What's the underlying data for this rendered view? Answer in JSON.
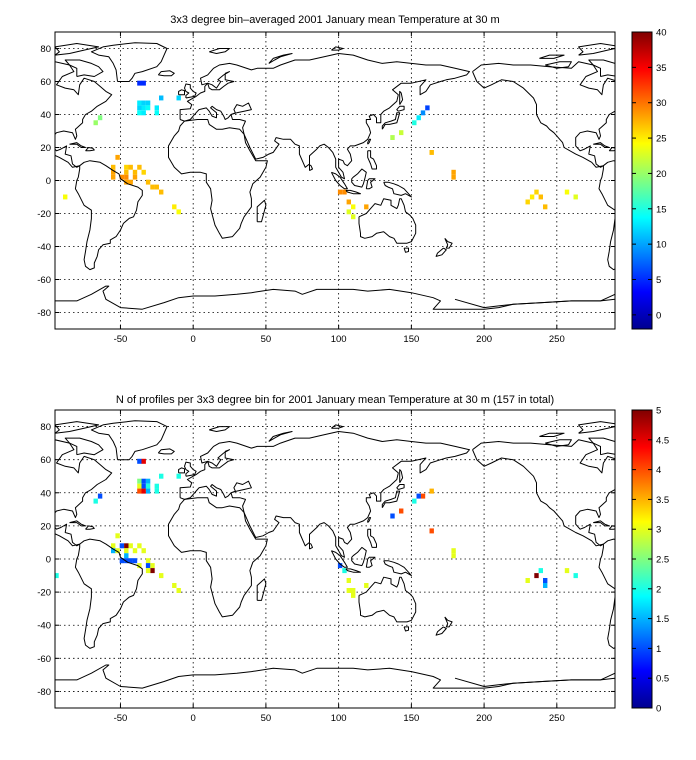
{
  "chart_data": [
    {
      "type": "heatmap",
      "title": "3x3 degree bin–averaged 2001 January mean Temperature at 30 m",
      "xlim": [
        -95,
        290
      ],
      "ylim": [
        -90,
        90
      ],
      "xticks": [
        -50,
        0,
        50,
        100,
        150,
        200,
        250
      ],
      "yticks": [
        -80,
        -60,
        -40,
        -20,
        0,
        20,
        40,
        60,
        80
      ],
      "grid": true,
      "colorbar": {
        "min": -2,
        "max": 40,
        "ticks": [
          0,
          5,
          10,
          15,
          20,
          25,
          30,
          35,
          40
        ],
        "colormap": "jet"
      },
      "points": [
        {
          "x": -37,
          "y": 59,
          "value": 5
        },
        {
          "x": -34,
          "y": 59,
          "value": 5
        },
        {
          "x": -22,
          "y": 50,
          "value": 11
        },
        {
          "x": -10,
          "y": 50,
          "value": 12
        },
        {
          "x": -37,
          "y": 47,
          "value": 13
        },
        {
          "x": -34,
          "y": 47,
          "value": 12
        },
        {
          "x": -31,
          "y": 47,
          "value": 12
        },
        {
          "x": -37,
          "y": 44,
          "value": 12
        },
        {
          "x": -34,
          "y": 44,
          "value": 13
        },
        {
          "x": -31,
          "y": 44,
          "value": 14
        },
        {
          "x": -25,
          "y": 44,
          "value": 13
        },
        {
          "x": -37,
          "y": 41,
          "value": 14
        },
        {
          "x": -34,
          "y": 41,
          "value": 13
        },
        {
          "x": -25,
          "y": 41,
          "value": 14
        },
        {
          "x": -64,
          "y": 38,
          "value": 19
        },
        {
          "x": -67,
          "y": 35,
          "value": 20
        },
        {
          "x": -52,
          "y": 14,
          "value": 28
        },
        {
          "x": -55,
          "y": 8,
          "value": 27
        },
        {
          "x": -46,
          "y": 8,
          "value": 26
        },
        {
          "x": -43,
          "y": 8,
          "value": 27
        },
        {
          "x": -37,
          "y": 8,
          "value": 27
        },
        {
          "x": -55,
          "y": 5,
          "value": 28
        },
        {
          "x": -46,
          "y": 5,
          "value": 27
        },
        {
          "x": -40,
          "y": 5,
          "value": 27
        },
        {
          "x": -34,
          "y": 5,
          "value": 26
        },
        {
          "x": -55,
          "y": 2,
          "value": 28
        },
        {
          "x": -49,
          "y": 2,
          "value": 29
        },
        {
          "x": -46,
          "y": 2,
          "value": 29
        },
        {
          "x": -40,
          "y": 2,
          "value": 28
        },
        {
          "x": -46,
          "y": -1,
          "value": 28
        },
        {
          "x": -43,
          "y": -1,
          "value": 28
        },
        {
          "x": -31,
          "y": -1,
          "value": 27
        },
        {
          "x": -28,
          "y": -4,
          "value": 27
        },
        {
          "x": -25,
          "y": -4,
          "value": 27
        },
        {
          "x": -22,
          "y": -7,
          "value": 27
        },
        {
          "x": -13,
          "y": -16,
          "value": 25
        },
        {
          "x": -10,
          "y": -19,
          "value": 24
        },
        {
          "x": -88,
          "y": -10,
          "value": 24
        },
        {
          "x": 101,
          "y": -7,
          "value": 29
        },
        {
          "x": 104,
          "y": -7,
          "value": 29
        },
        {
          "x": 107,
          "y": -13,
          "value": 28
        },
        {
          "x": 110,
          "y": -16,
          "value": 24
        },
        {
          "x": 107,
          "y": -19,
          "value": 23
        },
        {
          "x": 110,
          "y": -22,
          "value": 23
        },
        {
          "x": 119,
          "y": -16,
          "value": 28
        },
        {
          "x": 161,
          "y": 44,
          "value": 6
        },
        {
          "x": 158,
          "y": 41,
          "value": 9
        },
        {
          "x": 155,
          "y": 38,
          "value": 13
        },
        {
          "x": 152,
          "y": 35,
          "value": 15
        },
        {
          "x": 143,
          "y": 29,
          "value": 22
        },
        {
          "x": 137,
          "y": 26,
          "value": 21
        },
        {
          "x": 164,
          "y": 17,
          "value": 27
        },
        {
          "x": 179,
          "y": 5,
          "value": 28
        },
        {
          "x": 179,
          "y": 2,
          "value": 28
        },
        {
          "x": 230,
          "y": -13,
          "value": 26
        },
        {
          "x": 233,
          "y": -10,
          "value": 25
        },
        {
          "x": 236,
          "y": -7,
          "value": 26
        },
        {
          "x": 239,
          "y": -10,
          "value": 27
        },
        {
          "x": 242,
          "y": -16,
          "value": 27
        },
        {
          "x": 257,
          "y": -7,
          "value": 24
        },
        {
          "x": 263,
          "y": -10,
          "value": 23
        }
      ]
    },
    {
      "type": "heatmap",
      "title": "N of profiles per 3x3 degree bin for 2001 January mean Temperature at 30 m (157 in total)",
      "xlim": [
        -95,
        290
      ],
      "ylim": [
        -90,
        90
      ],
      "xticks": [
        -50,
        0,
        50,
        100,
        150,
        200,
        250
      ],
      "yticks": [
        -80,
        -60,
        -40,
        -20,
        0,
        20,
        40,
        60,
        80
      ],
      "grid": true,
      "colorbar": {
        "min": 0,
        "max": 5,
        "ticks": [
          0,
          0.5,
          1,
          1.5,
          2,
          2.5,
          3,
          3.5,
          4,
          4.5,
          5
        ],
        "colormap": "jet"
      },
      "points": [
        {
          "x": -37,
          "y": 59,
          "value": 1
        },
        {
          "x": -34,
          "y": 59,
          "value": 4.5
        },
        {
          "x": -22,
          "y": 50,
          "value": 2
        },
        {
          "x": -10,
          "y": 50,
          "value": 2
        },
        {
          "x": -37,
          "y": 47,
          "value": 2.5
        },
        {
          "x": -34,
          "y": 47,
          "value": 1
        },
        {
          "x": -31,
          "y": 47,
          "value": 1.5
        },
        {
          "x": -37,
          "y": 44,
          "value": 3
        },
        {
          "x": -34,
          "y": 44,
          "value": 1
        },
        {
          "x": -31,
          "y": 44,
          "value": 2
        },
        {
          "x": -25,
          "y": 44,
          "value": 2
        },
        {
          "x": -37,
          "y": 41,
          "value": 4
        },
        {
          "x": -34,
          "y": 41,
          "value": 4.5
        },
        {
          "x": -31,
          "y": 41,
          "value": 1.5
        },
        {
          "x": -25,
          "y": 41,
          "value": 2
        },
        {
          "x": -64,
          "y": 38,
          "value": 1
        },
        {
          "x": -67,
          "y": 35,
          "value": 2
        },
        {
          "x": -52,
          "y": 14,
          "value": 3
        },
        {
          "x": -55,
          "y": 8,
          "value": 3
        },
        {
          "x": -49,
          "y": 8,
          "value": 1
        },
        {
          "x": -46,
          "y": 8,
          "value": 5
        },
        {
          "x": -43,
          "y": 8,
          "value": 3
        },
        {
          "x": -37,
          "y": 8,
          "value": 3
        },
        {
          "x": -55,
          "y": 5,
          "value": 1.5
        },
        {
          "x": -52,
          "y": 5,
          "value": 3
        },
        {
          "x": -46,
          "y": 5,
          "value": 3
        },
        {
          "x": -40,
          "y": 5,
          "value": 3
        },
        {
          "x": -34,
          "y": 5,
          "value": 3
        },
        {
          "x": -46,
          "y": 2,
          "value": 1.5
        },
        {
          "x": -49,
          "y": -1,
          "value": 1
        },
        {
          "x": -46,
          "y": -1,
          "value": 1
        },
        {
          "x": -43,
          "y": -1,
          "value": 1
        },
        {
          "x": -40,
          "y": -1,
          "value": 1
        },
        {
          "x": -31,
          "y": -1,
          "value": 3
        },
        {
          "x": -37,
          "y": -4,
          "value": 3
        },
        {
          "x": -31,
          "y": -4,
          "value": 1
        },
        {
          "x": -28,
          "y": -4,
          "value": 3
        },
        {
          "x": -28,
          "y": -7,
          "value": 5
        },
        {
          "x": -31,
          "y": -7,
          "value": 3
        },
        {
          "x": -22,
          "y": -10,
          "value": 3
        },
        {
          "x": -13,
          "y": -16,
          "value": 3
        },
        {
          "x": -10,
          "y": -19,
          "value": 3
        },
        {
          "x": -94,
          "y": -10,
          "value": 2
        },
        {
          "x": 101,
          "y": -4,
          "value": 1
        },
        {
          "x": 104,
          "y": -7,
          "value": 2
        },
        {
          "x": 107,
          "y": -13,
          "value": 3
        },
        {
          "x": 110,
          "y": -19,
          "value": 3
        },
        {
          "x": 107,
          "y": -19,
          "value": 3
        },
        {
          "x": 110,
          "y": -22,
          "value": 3
        },
        {
          "x": 119,
          "y": -16,
          "value": 3
        },
        {
          "x": 164,
          "y": 41,
          "value": 3.5
        },
        {
          "x": 158,
          "y": 38,
          "value": 4
        },
        {
          "x": 155,
          "y": 38,
          "value": 1
        },
        {
          "x": 152,
          "y": 35,
          "value": 2
        },
        {
          "x": 143,
          "y": 29,
          "value": 4
        },
        {
          "x": 137,
          "y": 26,
          "value": 1
        },
        {
          "x": 164,
          "y": 17,
          "value": 4
        },
        {
          "x": 179,
          "y": 5,
          "value": 3
        },
        {
          "x": 179,
          "y": 2,
          "value": 3
        },
        {
          "x": 230,
          "y": -13,
          "value": 3
        },
        {
          "x": 236,
          "y": -10,
          "value": 5
        },
        {
          "x": 239,
          "y": -7,
          "value": 2
        },
        {
          "x": 242,
          "y": -13,
          "value": 1
        },
        {
          "x": 242,
          "y": -16,
          "value": 1.5
        },
        {
          "x": 257,
          "y": -7,
          "value": 3
        },
        {
          "x": 263,
          "y": -10,
          "value": 2
        }
      ]
    }
  ]
}
